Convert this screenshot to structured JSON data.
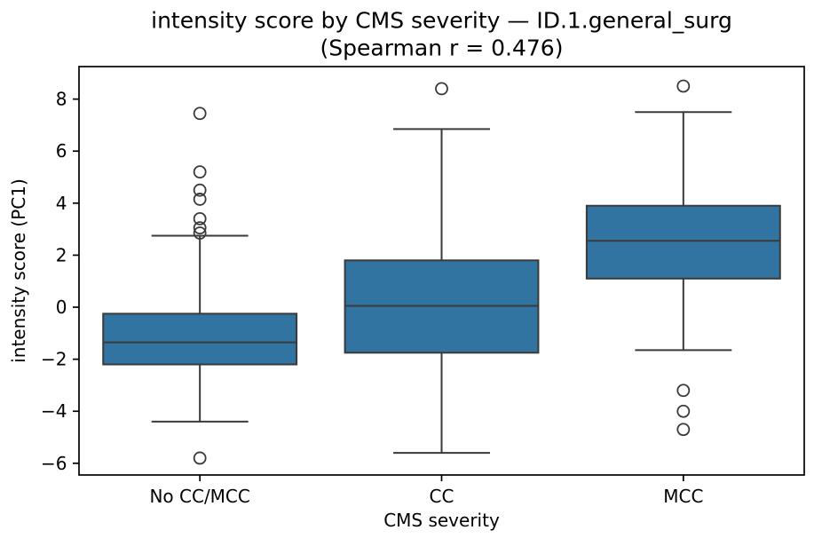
{
  "chart_data": {
    "type": "box",
    "title_lines": [
      "intensity score by CMS severity — ID.1.general_surg",
      "(Spearman r = 0.476)"
    ],
    "xlabel": "CMS severity",
    "ylabel": "intensity score (PC1)",
    "categories": [
      "No CC/MCC",
      "CC",
      "MCC"
    ],
    "ytick_values": [
      8,
      6,
      4,
      2,
      0,
      -2,
      -4,
      -6
    ],
    "ylim": [
      -6.45,
      9.25
    ],
    "grid": false,
    "legend": false,
    "box_width_frac": 0.8,
    "cap_width_frac": 0.4,
    "colors": {
      "box_fill": "#3274a1",
      "box_line": "#3a3a3a",
      "axis_line": "#000000",
      "text": "#000000",
      "background": "#ffffff"
    },
    "series": [
      {
        "label": "No CC/MCC",
        "whisker_low": -4.4,
        "q1": -2.2,
        "median": -1.35,
        "q3": -0.25,
        "whisker_high": 2.75,
        "outliers": [
          7.45,
          5.2,
          4.5,
          4.15,
          3.4,
          3.05,
          2.85,
          -5.8
        ]
      },
      {
        "label": "CC",
        "whisker_low": -5.6,
        "q1": -1.75,
        "median": 0.05,
        "q3": 1.8,
        "whisker_high": 6.85,
        "outliers": [
          8.4
        ]
      },
      {
        "label": "MCC",
        "whisker_low": -1.65,
        "q1": 1.1,
        "median": 2.55,
        "q3": 3.9,
        "whisker_high": 7.5,
        "outliers": [
          8.5,
          -3.2,
          -4.0,
          -4.7
        ]
      }
    ]
  }
}
